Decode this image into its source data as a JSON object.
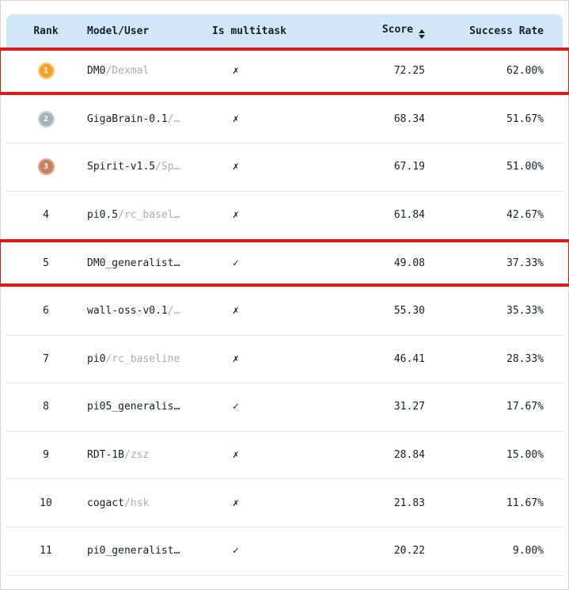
{
  "table": {
    "columns": {
      "rank": "Rank",
      "model_user": "Model/User",
      "is_multitask": "Is multitask",
      "score": "Score",
      "success_rate": "Success Rate"
    },
    "multitask_true_glyph": "✓",
    "multitask_false_glyph": "✗",
    "rows": [
      {
        "rank": "1",
        "medal": "gold",
        "model": "DM0",
        "user": "/Dexmal",
        "multitask": false,
        "score": "72.25",
        "rate": "62.00%",
        "highlight": true
      },
      {
        "rank": "2",
        "medal": "silver",
        "model": "GigaBrain-0.1",
        "user": "/…",
        "multitask": false,
        "score": "68.34",
        "rate": "51.67%",
        "highlight": false
      },
      {
        "rank": "3",
        "medal": "bronze",
        "model": "Spirit-v1.5",
        "user": "/Sp…",
        "multitask": false,
        "score": "67.19",
        "rate": "51.00%",
        "highlight": false
      },
      {
        "rank": "4",
        "medal": null,
        "model": "pi0.5",
        "user": "/rc_basel…",
        "multitask": false,
        "score": "61.84",
        "rate": "42.67%",
        "highlight": false
      },
      {
        "rank": "5",
        "medal": null,
        "model": "DM0_generalist…",
        "user": "",
        "multitask": true,
        "score": "49.08",
        "rate": "37.33%",
        "highlight": true
      },
      {
        "rank": "6",
        "medal": null,
        "model": "wall-oss-v0.1",
        "user": "/…",
        "multitask": false,
        "score": "55.30",
        "rate": "35.33%",
        "highlight": false
      },
      {
        "rank": "7",
        "medal": null,
        "model": "pi0",
        "user": "/rc_baseline",
        "multitask": false,
        "score": "46.41",
        "rate": "28.33%",
        "highlight": false
      },
      {
        "rank": "8",
        "medal": null,
        "model": "pi05_generalis…",
        "user": "",
        "multitask": true,
        "score": "31.27",
        "rate": "17.67%",
        "highlight": false
      },
      {
        "rank": "9",
        "medal": null,
        "model": "RDT-1B",
        "user": "/zsz",
        "multitask": false,
        "score": "28.84",
        "rate": "15.00%",
        "highlight": false
      },
      {
        "rank": "10",
        "medal": null,
        "model": "cogact",
        "user": "/hsk",
        "multitask": false,
        "score": "21.83",
        "rate": "11.67%",
        "highlight": false
      },
      {
        "rank": "11",
        "medal": null,
        "model": "pi0_generalist…",
        "user": "",
        "multitask": true,
        "score": "20.22",
        "rate": "9.00%",
        "highlight": false
      }
    ]
  },
  "colors": {
    "header_bg": "#cfe7f7",
    "highlight_border": "#dd1b1b",
    "gold": "#f3a229",
    "silver": "#a6b0bd",
    "bronze": "#c8805f",
    "muted_text": "#a7adb5"
  }
}
